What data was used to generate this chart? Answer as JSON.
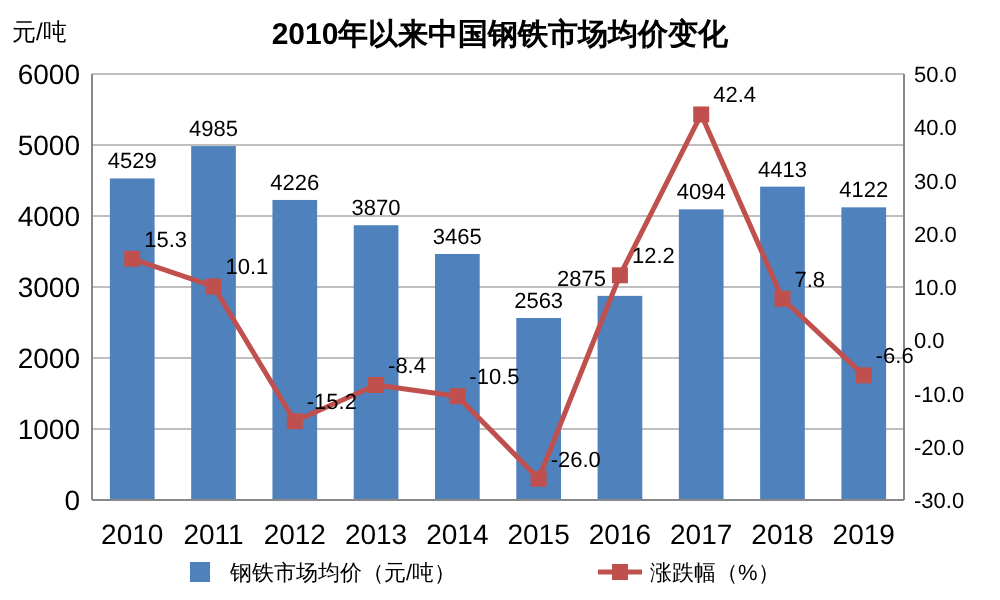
{
  "chart_data": {
    "type": "bar",
    "title": "2010年以来中国钢铁市场均价变化",
    "ylabel": "元/吨",
    "categories": [
      "2010",
      "2011",
      "2012",
      "2013",
      "2014",
      "2015",
      "2016",
      "2017",
      "2018",
      "2019"
    ],
    "series": [
      {
        "name": "钢铁市场均价（元/吨）",
        "color": "#4f81bd",
        "values": [
          4529,
          4985,
          4226,
          3870,
          3465,
          2563,
          2875,
          4094,
          4413,
          4122
        ],
        "value_labels": [
          "4529",
          "4985",
          "4226",
          "3870",
          "3465",
          "2563",
          "2875",
          "4094",
          "4413",
          "4122"
        ]
      },
      {
        "name": "涨跌幅（%）",
        "type": "line",
        "axis": "y2",
        "color": "#c0504d",
        "values": [
          15.3,
          10.1,
          -15.2,
          -8.4,
          -10.5,
          -26.0,
          12.2,
          42.4,
          7.8,
          -6.6
        ],
        "value_labels": [
          "15.3",
          "10.1",
          "-15.2",
          "-8.4",
          "-10.5",
          "-26.0",
          "12.2",
          "42.4",
          "7.8",
          "-6.6"
        ]
      }
    ],
    "ylim": [
      0,
      6000
    ],
    "yticks": [
      0,
      1000,
      2000,
      3000,
      4000,
      5000,
      6000
    ],
    "y2lim": [
      -30,
      50
    ],
    "y2ticks": [
      {
        "value": -30,
        "label": "-30.0"
      },
      {
        "value": -20,
        "label": "-20.0"
      },
      {
        "value": -10,
        "label": "-10.0"
      },
      {
        "value": 0,
        "label": "0.0"
      },
      {
        "value": 10,
        "label": "10.0"
      },
      {
        "value": 20,
        "label": "20.0"
      },
      {
        "value": 30,
        "label": "30.0"
      },
      {
        "value": 40,
        "label": "40.0"
      },
      {
        "value": 50,
        "label": "50.0"
      }
    ],
    "grid": "y",
    "legend": "bottom",
    "marker": "square",
    "line_style": "solid"
  }
}
